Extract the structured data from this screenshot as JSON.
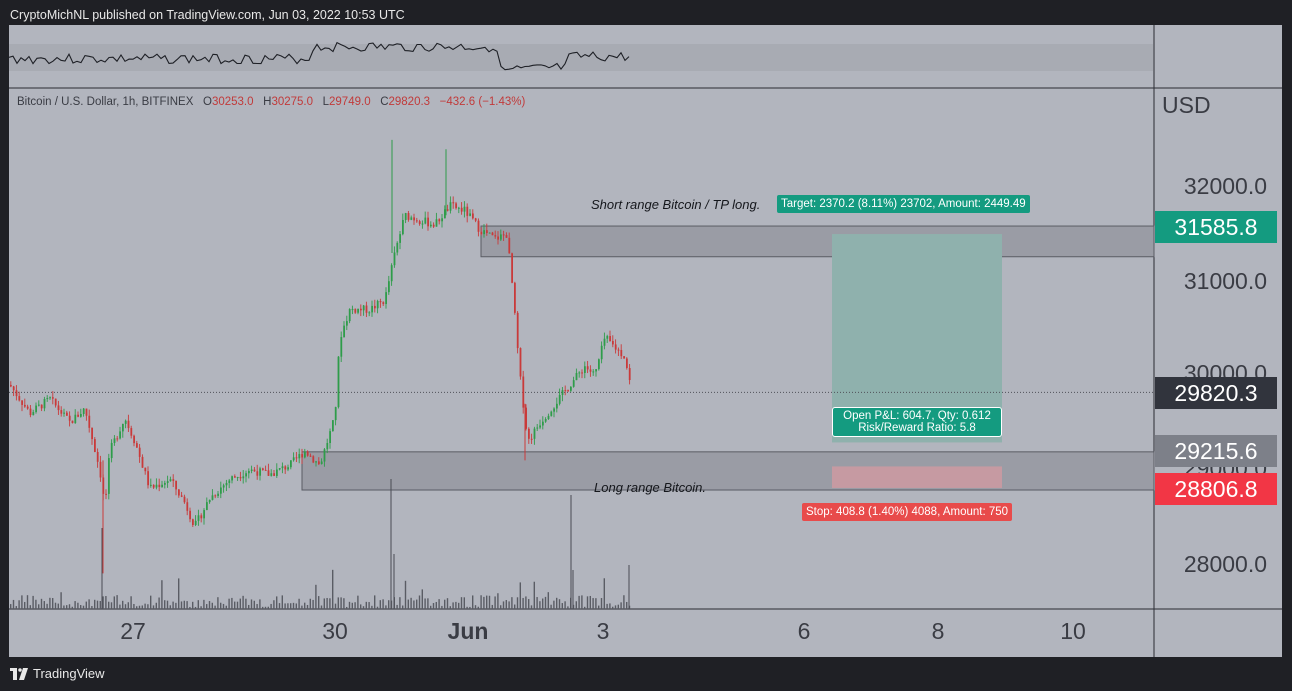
{
  "header": {
    "published_by": "CryptoMichNL published on TradingView.com, Jun 03, 2022 10:53 UTC"
  },
  "footer": {
    "brand": "TradingView"
  },
  "colors": {
    "up": "#2e9c4a",
    "down": "#c93a3a",
    "target_fill": "#8fb1ad",
    "stop_fill": "#c69aa2",
    "zone_fill": "#9a9ca5",
    "target_label": "#149b80",
    "stop_label": "#e84b4b",
    "tag_green": "#149b80",
    "tag_dark": "#31343d",
    "tag_grey": "#7d8089",
    "tag_red": "#f23645"
  },
  "legend": {
    "symbol": "Bitcoin / U.S. Dollar, 1h, BITFINEX",
    "o_label": "O",
    "o": "30253.0",
    "h_label": "H",
    "h": "30275.0",
    "l_label": "L",
    "l": "29749.0",
    "c_label": "C",
    "c": "29820.3",
    "change": "−432.6 (−1.43%)"
  },
  "annotations": {
    "short_range": "Short range Bitcoin / TP long.",
    "long_range": "Long range Bitcoin.",
    "target": "Target: 2370.2 (8.11%) 23702, Amount: 2449.49",
    "stop": "Stop: 408.8 (1.40%) 4088, Amount: 750",
    "pnl_line1": "Open P&L: 604.7, Qty: 0.612",
    "pnl_line2": "Risk/Reward Ratio: 5.8"
  },
  "axis": {
    "currency": "USD",
    "y_ticks": [
      "32000.0",
      "31000.0",
      "30000.0",
      "29000.0",
      "28000.0"
    ],
    "x_ticks": [
      "27",
      "30",
      "Jun",
      "3",
      "6",
      "8",
      "10"
    ],
    "price_tags": [
      "31585.8",
      "29820.3",
      "29215.6",
      "28806.8"
    ]
  },
  "chart_data": {
    "type": "candlestick",
    "symbol": "BTCUSD",
    "interval": "1h",
    "ylim": [
      27500,
      32900
    ],
    "zones": [
      {
        "name": "Short range Bitcoin / TP long.",
        "low": 31260,
        "high": 31585.8
      },
      {
        "name": "Long range Bitcoin.",
        "low": 28785,
        "high": 29190
      }
    ],
    "position": {
      "type": "long",
      "entry": 29215.6,
      "target": 31585.8,
      "stop": 28806.8
    },
    "last_price": 29820.3,
    "path_keypoints": [
      {
        "date": "2022-05-26",
        "price": 29700
      },
      {
        "date": "2022-05-27",
        "price": 29350
      },
      {
        "date": "2022-05-28",
        "price": 28800
      },
      {
        "date": "2022-05-29",
        "price": 29050
      },
      {
        "date": "2022-05-30",
        "price": 29350
      },
      {
        "date": "2022-05-31",
        "price": 30700
      },
      {
        "date": "2022-06-01",
        "price": 31400
      },
      {
        "date": "2022-06-02",
        "price": 29700
      },
      {
        "date": "2022-06-03",
        "price": 30550
      }
    ]
  }
}
